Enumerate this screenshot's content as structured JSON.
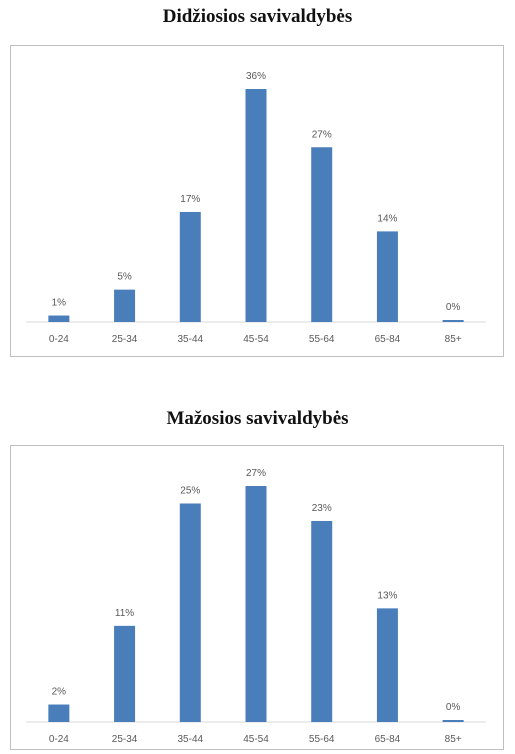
{
  "chart_data": [
    {
      "type": "bar",
      "title": "Didžiosios savivaldybės",
      "categories": [
        "0-24",
        "25-34",
        "35-44",
        "45-54",
        "55-64",
        "65-84",
        "85+"
      ],
      "values": [
        1,
        5,
        17,
        36,
        27,
        14,
        0
      ],
      "data_labels": [
        "1%",
        "5%",
        "17%",
        "36%",
        "27%",
        "14%",
        "0%"
      ],
      "unit": "%",
      "ylim": [
        0,
        36
      ],
      "grid": false,
      "legend": "none",
      "bar_color": "#4a7ebb"
    },
    {
      "type": "bar",
      "title": "Mažosios savivaldybės",
      "categories": [
        "0-24",
        "25-34",
        "35-44",
        "45-54",
        "55-64",
        "65-84",
        "85+"
      ],
      "values": [
        2,
        11,
        25,
        27,
        23,
        13,
        0
      ],
      "data_labels": [
        "2%",
        "11%",
        "25%",
        "27%",
        "23%",
        "13%",
        "0%"
      ],
      "unit": "%",
      "ylim": [
        0,
        27
      ],
      "grid": false,
      "legend": "none",
      "bar_color": "#4a7ebb"
    }
  ]
}
